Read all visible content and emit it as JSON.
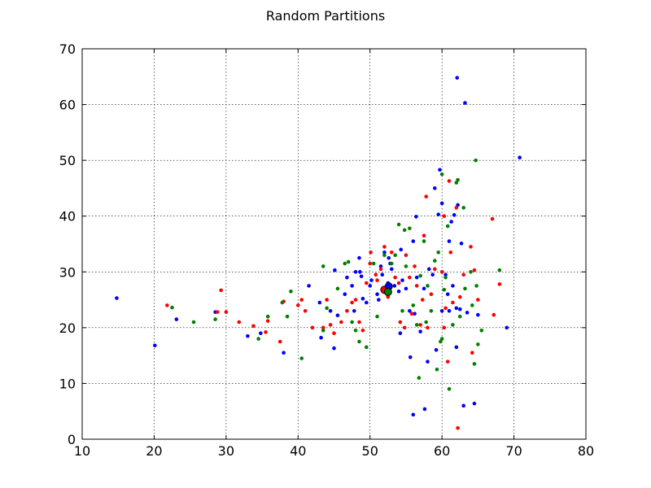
{
  "chart_data": {
    "type": "scatter",
    "title": "Random Partitions",
    "xlabel": "",
    "ylabel": "",
    "xlim": [
      10,
      80
    ],
    "ylim": [
      0,
      70
    ],
    "xticks": [
      "10",
      "20",
      "30",
      "40",
      "50",
      "60",
      "70",
      "80"
    ],
    "yticks": [
      "0",
      "10",
      "20",
      "30",
      "40",
      "50",
      "60",
      "70"
    ],
    "grid": true,
    "series": [
      {
        "color": "#0000ff",
        "points": [
          [
            14.8,
            25.3
          ],
          [
            20.1,
            16.8
          ],
          [
            23.1,
            21.5
          ],
          [
            28.5,
            22.8
          ],
          [
            33.0,
            18.5
          ],
          [
            34.8,
            19.0
          ],
          [
            38.0,
            15.5
          ],
          [
            41.5,
            27.5
          ],
          [
            43.0,
            24.5
          ],
          [
            43.2,
            18.2
          ],
          [
            44.5,
            23.0
          ],
          [
            45.0,
            16.3
          ],
          [
            45.1,
            30.3
          ],
          [
            45.5,
            22.2
          ],
          [
            46.5,
            26.0
          ],
          [
            46.8,
            29.0
          ],
          [
            47.5,
            27.5
          ],
          [
            47.8,
            23.0
          ],
          [
            48.0,
            30.0
          ],
          [
            48.5,
            32.5
          ],
          [
            48.6,
            30.0
          ],
          [
            48.8,
            29.2
          ],
          [
            49.0,
            25.2
          ],
          [
            49.5,
            24.5
          ],
          [
            50.0,
            27.5
          ],
          [
            50.2,
            28.5
          ],
          [
            51.0,
            26.0
          ],
          [
            51.2,
            25.0
          ],
          [
            51.5,
            31.0
          ],
          [
            51.7,
            29.5
          ],
          [
            52.0,
            33.5
          ],
          [
            52.5,
            28.0
          ],
          [
            52.6,
            32.5
          ],
          [
            52.8,
            31.5
          ],
          [
            53.0,
            30.5
          ],
          [
            53.4,
            27.5
          ],
          [
            54.0,
            26.5
          ],
          [
            54.2,
            19.0
          ],
          [
            54.3,
            34.0
          ],
          [
            54.5,
            28.5
          ],
          [
            55.0,
            27.0
          ],
          [
            55.5,
            23.0
          ],
          [
            55.6,
            14.7
          ],
          [
            56.0,
            4.4
          ],
          [
            56.0,
            35.5
          ],
          [
            56.2,
            22.5
          ],
          [
            56.4,
            39.9
          ],
          [
            56.5,
            29.0
          ],
          [
            57.0,
            19.3
          ],
          [
            57.5,
            27.0
          ],
          [
            57.6,
            5.4
          ],
          [
            58.0,
            13.9
          ],
          [
            58.2,
            30.5
          ],
          [
            58.7,
            29.5
          ],
          [
            59.0,
            45.0
          ],
          [
            59.2,
            16.0
          ],
          [
            59.5,
            40.3
          ],
          [
            59.7,
            48.3
          ],
          [
            60.0,
            23.0
          ],
          [
            60.0,
            42.3
          ],
          [
            60.5,
            29.5
          ],
          [
            60.8,
            26.0
          ],
          [
            61.0,
            23.0
          ],
          [
            61.0,
            35.5
          ],
          [
            61.3,
            39.0
          ],
          [
            61.5,
            27.5
          ],
          [
            61.7,
            40.2
          ],
          [
            62.0,
            16.5
          ],
          [
            62.0,
            23.5
          ],
          [
            62.1,
            64.8
          ],
          [
            62.2,
            42.0
          ],
          [
            62.5,
            23.3
          ],
          [
            62.7,
            35.1
          ],
          [
            63.0,
            6.0
          ],
          [
            63.2,
            60.3
          ],
          [
            63.5,
            22.7
          ],
          [
            64.5,
            6.4
          ],
          [
            65.0,
            22.3
          ],
          [
            69.0,
            20.0
          ],
          [
            70.8,
            50.5
          ]
        ]
      },
      {
        "color": "#ff0000",
        "points": [
          [
            21.8,
            24.0
          ],
          [
            28.8,
            22.8
          ],
          [
            29.3,
            26.7
          ],
          [
            30.0,
            22.8
          ],
          [
            31.8,
            21.0
          ],
          [
            33.8,
            20.3
          ],
          [
            35.5,
            19.2
          ],
          [
            35.8,
            21.2
          ],
          [
            37.5,
            17.5
          ],
          [
            38.0,
            24.7
          ],
          [
            40.0,
            24.0
          ],
          [
            40.5,
            25.0
          ],
          [
            41.0,
            23.0
          ],
          [
            42.0,
            20.0
          ],
          [
            43.5,
            20.0
          ],
          [
            44.0,
            25.0
          ],
          [
            44.5,
            20.5
          ],
          [
            45.0,
            19.0
          ],
          [
            46.0,
            21.0
          ],
          [
            46.8,
            23.0
          ],
          [
            47.5,
            24.5
          ],
          [
            48.0,
            25.0
          ],
          [
            48.5,
            21.0
          ],
          [
            49.0,
            19.5
          ],
          [
            49.5,
            28.0
          ],
          [
            50.0,
            31.5
          ],
          [
            50.1,
            33.5
          ],
          [
            50.8,
            29.5
          ],
          [
            51.0,
            28.5
          ],
          [
            51.5,
            30.5
          ],
          [
            52.0,
            34.5
          ],
          [
            52.3,
            26.8
          ],
          [
            52.5,
            25.5
          ],
          [
            53.0,
            33.5
          ],
          [
            53.5,
            29.0
          ],
          [
            54.0,
            28.0
          ],
          [
            54.2,
            21.0
          ],
          [
            54.8,
            20.0
          ],
          [
            55.0,
            33.0
          ],
          [
            55.5,
            29.0
          ],
          [
            55.8,
            22.5
          ],
          [
            56.2,
            31.0
          ],
          [
            56.5,
            27.5
          ],
          [
            57.0,
            20.5
          ],
          [
            57.3,
            25.0
          ],
          [
            57.5,
            36.5
          ],
          [
            57.8,
            43.5
          ],
          [
            58.0,
            20.0
          ],
          [
            58.5,
            26.0
          ],
          [
            59.0,
            30.5
          ],
          [
            60.0,
            30.0
          ],
          [
            60.3,
            20.0
          ],
          [
            60.5,
            23.5
          ],
          [
            60.8,
            13.9
          ],
          [
            61.0,
            46.3
          ],
          [
            61.2,
            33.5
          ],
          [
            61.5,
            24.5
          ],
          [
            62.0,
            41.5
          ],
          [
            62.2,
            2.0
          ],
          [
            62.5,
            25.5
          ],
          [
            63.0,
            29.5
          ],
          [
            64.0,
            34.5
          ],
          [
            64.2,
            15.5
          ],
          [
            64.5,
            30.3
          ],
          [
            65.0,
            25.0
          ],
          [
            67.0,
            39.5
          ],
          [
            67.2,
            22.3
          ],
          [
            68.0,
            27.8
          ],
          [
            60.3,
            40.0
          ]
        ]
      },
      {
        "color": "#008000",
        "points": [
          [
            22.5,
            23.6
          ],
          [
            25.5,
            21.0
          ],
          [
            28.5,
            21.5
          ],
          [
            34.5,
            18.0
          ],
          [
            35.8,
            22.0
          ],
          [
            37.8,
            24.5
          ],
          [
            38.5,
            22.0
          ],
          [
            39.0,
            26.5
          ],
          [
            40.5,
            14.5
          ],
          [
            43.5,
            31.0
          ],
          [
            43.5,
            19.5
          ],
          [
            44.0,
            23.5
          ],
          [
            45.5,
            27.0
          ],
          [
            46.5,
            31.5
          ],
          [
            47.0,
            31.8
          ],
          [
            47.5,
            21.0
          ],
          [
            48.0,
            19.5
          ],
          [
            48.5,
            17.5
          ],
          [
            49.5,
            16.5
          ],
          [
            50.5,
            31.5
          ],
          [
            51.0,
            22.0
          ],
          [
            52.0,
            33.0
          ],
          [
            52.5,
            26.5
          ],
          [
            53.0,
            31.5
          ],
          [
            53.5,
            33.0
          ],
          [
            54.0,
            38.5
          ],
          [
            54.5,
            23.0
          ],
          [
            54.8,
            37.5
          ],
          [
            55.0,
            31.0
          ],
          [
            55.5,
            37.8
          ],
          [
            56.0,
            24.0
          ],
          [
            56.5,
            20.5
          ],
          [
            56.8,
            11.0
          ],
          [
            57.0,
            29.3
          ],
          [
            57.5,
            35.5
          ],
          [
            57.8,
            21.0
          ],
          [
            58.0,
            27.5
          ],
          [
            58.5,
            23.0
          ],
          [
            59.0,
            32.0
          ],
          [
            59.3,
            12.5
          ],
          [
            59.5,
            33.5
          ],
          [
            59.8,
            17.5
          ],
          [
            60.0,
            47.5
          ],
          [
            60.0,
            18.0
          ],
          [
            60.3,
            26.8
          ],
          [
            60.5,
            29.0
          ],
          [
            60.8,
            38.2
          ],
          [
            61.0,
            9.0
          ],
          [
            61.5,
            20.5
          ],
          [
            62.0,
            46.0
          ],
          [
            62.2,
            46.5
          ],
          [
            62.5,
            22.0
          ],
          [
            63.0,
            41.5
          ],
          [
            63.2,
            27.0
          ],
          [
            64.0,
            30.0
          ],
          [
            64.2,
            24.0
          ],
          [
            64.5,
            13.5
          ],
          [
            64.8,
            27.5
          ],
          [
            64.7,
            50.0
          ],
          [
            65.0,
            17.0
          ],
          [
            65.5,
            19.5
          ],
          [
            68.0,
            30.3
          ],
          [
            52.7,
            26.3
          ]
        ]
      }
    ],
    "highlights": [
      {
        "x": 52.0,
        "y": 26.8,
        "color": "#ff0000"
      },
      {
        "x": 52.6,
        "y": 27.4,
        "color": "#0000ff"
      },
      {
        "x": 52.5,
        "y": 26.4,
        "color": "#008000"
      }
    ]
  }
}
